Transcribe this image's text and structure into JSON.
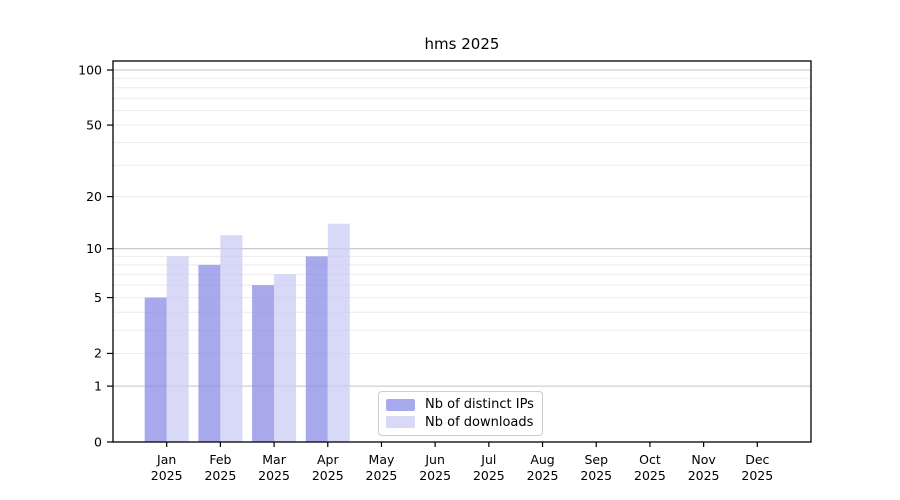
{
  "chart_data": {
    "type": "bar",
    "title": "hms 2025",
    "categories": [
      "Jan",
      "Feb",
      "Mar",
      "Apr",
      "May",
      "Jun",
      "Jul",
      "Aug",
      "Sep",
      "Oct",
      "Nov",
      "Dec"
    ],
    "year_label": "2025",
    "series": [
      {
        "name": "Nb of distinct IPs",
        "color": "#8b8be6",
        "opacity": 0.75,
        "values": [
          5,
          8,
          6,
          9,
          null,
          null,
          null,
          null,
          null,
          null,
          null,
          null
        ]
      },
      {
        "name": "Nb of downloads",
        "color": "#cbcbf4",
        "opacity": 0.75,
        "values": [
          9,
          12,
          7,
          14,
          null,
          null,
          null,
          null,
          null,
          null,
          null,
          null
        ]
      }
    ],
    "y_axis": {
      "scale": "log10(1+v)",
      "ylim": [
        0,
        100
      ],
      "ticks": [
        0,
        1,
        2,
        5,
        10,
        20,
        50,
        100
      ],
      "gridlines_major": [
        1,
        10,
        100
      ],
      "gridlines_minor": [
        2,
        3,
        4,
        5,
        6,
        7,
        8,
        9,
        20,
        30,
        40,
        50,
        60,
        70,
        80,
        90
      ]
    },
    "legend_position": "lower center",
    "grid": "on",
    "styling": {
      "minor_grid_color": "#ebebeb",
      "major_grid_color": "#c3c3c3",
      "axis_color": "#000000",
      "text_color": "#000000"
    }
  }
}
